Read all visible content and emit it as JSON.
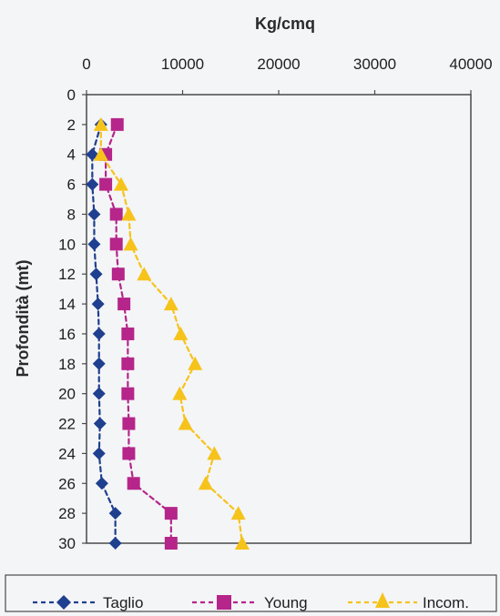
{
  "chart_data": {
    "type": "line",
    "x_title": "Kg/cmq",
    "y_title": "Profondità (mt)",
    "x_axis_position": "top",
    "y_axis_inverted": true,
    "xlim": [
      0,
      40000
    ],
    "ylim": [
      0,
      30
    ],
    "x_ticks": [
      0,
      10000,
      20000,
      30000,
      40000
    ],
    "x_tick_labels": [
      "0",
      "10000",
      "20000",
      "30000",
      "40000"
    ],
    "y_ticks": [
      0,
      2,
      4,
      6,
      8,
      10,
      12,
      14,
      16,
      18,
      20,
      22,
      24,
      26,
      28,
      30
    ],
    "y_tick_labels": [
      "0",
      "2",
      "4",
      "6",
      "8",
      "10",
      "12",
      "14",
      "16",
      "18",
      "20",
      "22",
      "24",
      "26",
      "28",
      "30"
    ],
    "grid": false,
    "legend_position": "bottom",
    "series": [
      {
        "name": "Taglio",
        "color": "#1f3f8f",
        "marker": "diamond",
        "line": "dashed",
        "points": [
          [
            1500,
            2
          ],
          [
            600,
            4
          ],
          [
            600,
            6
          ],
          [
            800,
            8
          ],
          [
            800,
            10
          ],
          [
            1000,
            12
          ],
          [
            1200,
            14
          ],
          [
            1300,
            16
          ],
          [
            1300,
            18
          ],
          [
            1300,
            20
          ],
          [
            1400,
            22
          ],
          [
            1300,
            24
          ],
          [
            1600,
            26
          ],
          [
            3000,
            28
          ],
          [
            3000,
            30
          ]
        ]
      },
      {
        "name": "Young",
        "color": "#b5258a",
        "marker": "square",
        "line": "dashed",
        "points": [
          [
            3200,
            2
          ],
          [
            2000,
            4
          ],
          [
            2000,
            6
          ],
          [
            3100,
            8
          ],
          [
            3100,
            10
          ],
          [
            3300,
            12
          ],
          [
            3900,
            14
          ],
          [
            4300,
            16
          ],
          [
            4300,
            18
          ],
          [
            4300,
            20
          ],
          [
            4400,
            22
          ],
          [
            4400,
            24
          ],
          [
            4900,
            26
          ],
          [
            8800,
            28
          ],
          [
            8800,
            30
          ]
        ]
      },
      {
        "name": "Incom.",
        "color": "#f6c31b",
        "marker": "triangle",
        "line": "dashed",
        "points": [
          [
            1500,
            2
          ],
          [
            1500,
            4
          ],
          [
            3600,
            6
          ],
          [
            4400,
            8
          ],
          [
            4600,
            10
          ],
          [
            6000,
            12
          ],
          [
            8800,
            14
          ],
          [
            9800,
            16
          ],
          [
            11300,
            18
          ],
          [
            9700,
            20
          ],
          [
            10300,
            22
          ],
          [
            13300,
            24
          ],
          [
            12400,
            26
          ],
          [
            15800,
            28
          ],
          [
            16200,
            30
          ]
        ]
      }
    ]
  }
}
